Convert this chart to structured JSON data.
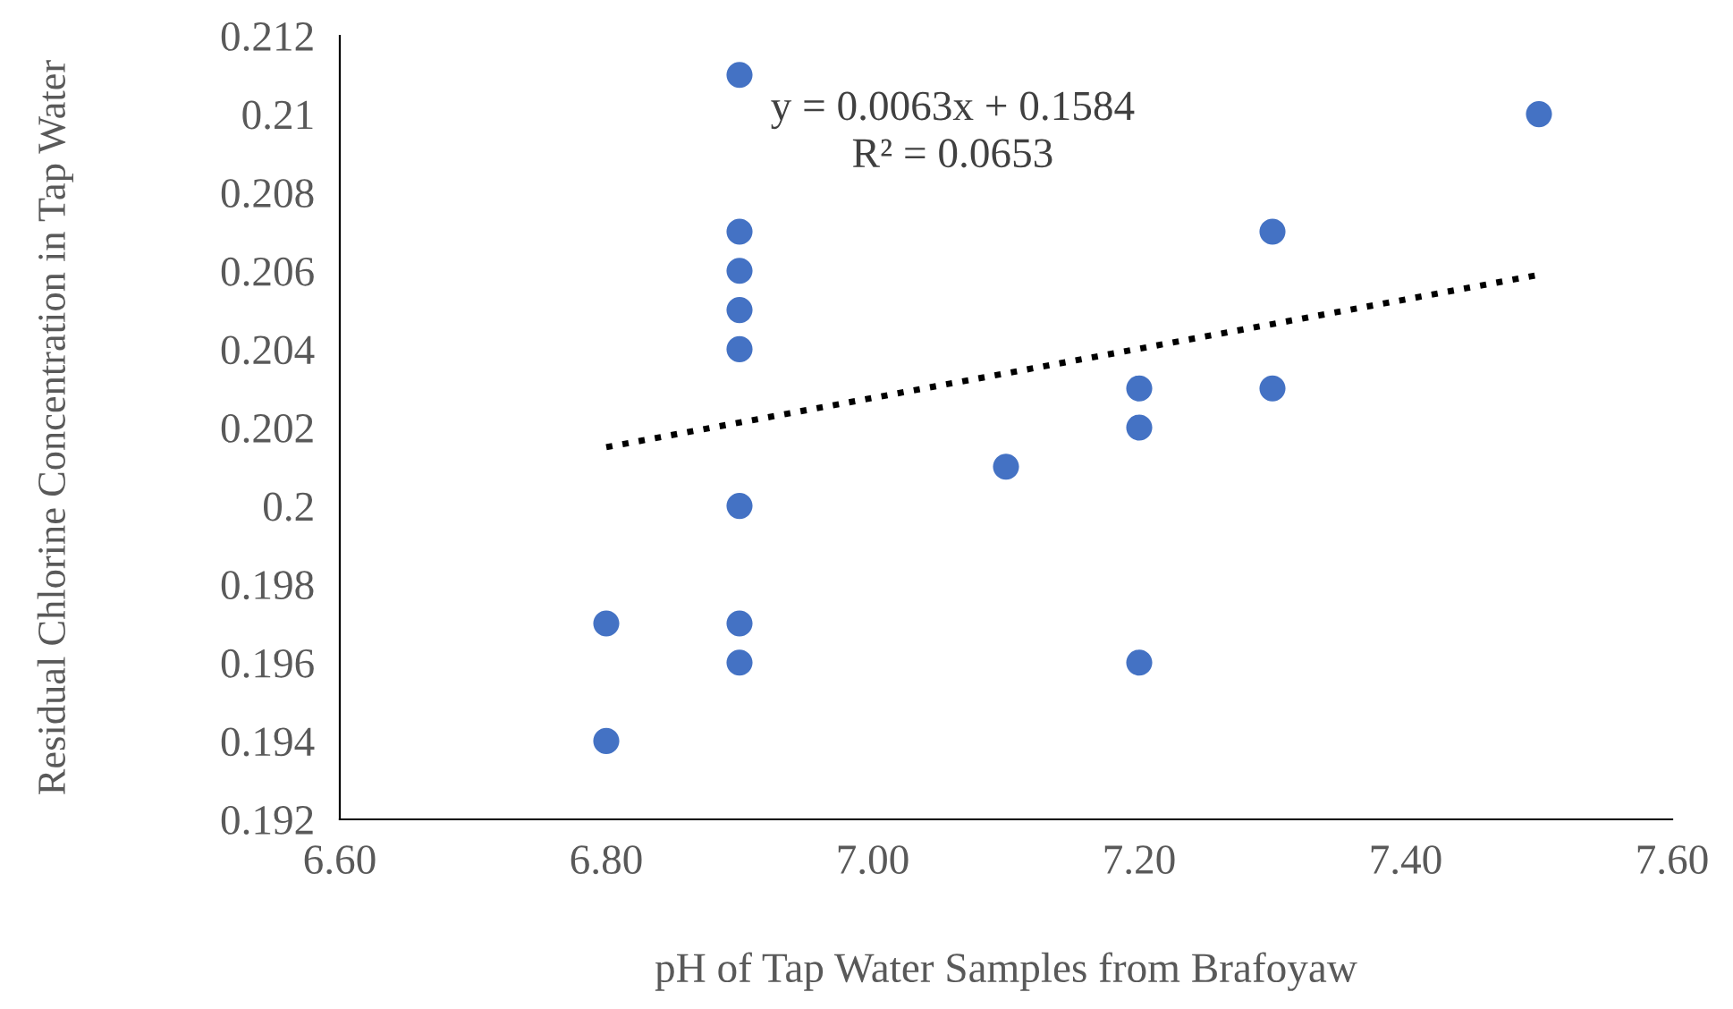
{
  "chart_data": {
    "type": "scatter",
    "xlabel": "pH of Tap Water Samples from Brafoyaw",
    "ylabel": "Residual Chlorine Concentration in Tap Water",
    "annotations": [
      "y = 0.0063x + 0.1584\nR² = 0.0653"
    ],
    "series": [
      {
        "color": "#4472c4",
        "marker": "circle",
        "x": [
          6.9,
          7.5,
          6.9,
          7.3,
          6.9,
          6.9,
          6.9,
          7.2,
          7.3,
          7.2,
          7.1,
          6.9,
          6.8,
          6.9,
          6.9,
          7.2,
          6.8
        ],
        "values": [
          0.211,
          0.21,
          0.207,
          0.207,
          0.206,
          0.205,
          0.204,
          0.203,
          0.203,
          0.202,
          0.201,
          0.2,
          0.197,
          0.197,
          0.196,
          0.196,
          0.194
        ]
      },
      {
        "type": "line",
        "color": "#000000",
        "line_style": "dotted",
        "marker": "none",
        "x": [
          6.8,
          7.5
        ],
        "values": [
          0.2015,
          0.2059
        ]
      }
    ],
    "xlim": [
      6.6,
      7.6
    ],
    "xticks": [
      {
        "value": 6.6,
        "label": "6.60"
      },
      {
        "value": 6.8,
        "label": "6.80"
      },
      {
        "value": 7.0,
        "label": "7.00"
      },
      {
        "value": 7.2,
        "label": "7.20"
      },
      {
        "value": 7.4,
        "label": "7.40"
      },
      {
        "value": 7.6,
        "label": "7.60"
      }
    ],
    "ylim": [
      0.192,
      0.212
    ],
    "yticks": [
      0.192,
      0.194,
      0.196,
      0.198,
      0.2,
      0.202,
      0.204,
      0.206,
      0.208,
      0.21,
      0.212
    ],
    "grid": false,
    "legend": false
  }
}
